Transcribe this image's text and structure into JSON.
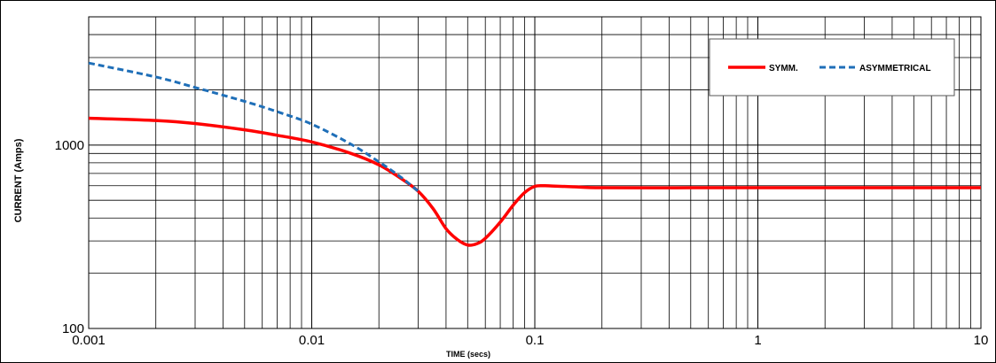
{
  "chart_data": {
    "type": "line",
    "title": "",
    "xlabel": "TIME (secs)",
    "ylabel": "CURRENT (Amps)",
    "xscale": "log",
    "yscale": "log",
    "xlim": [
      0.001,
      10
    ],
    "ylim": [
      100,
      5000
    ],
    "grid": true,
    "legend_position": "top-right",
    "x_tick_labels": [
      "0.001",
      "0.01",
      "0.1",
      "1",
      "10"
    ],
    "x_tick_values": [
      0.001,
      0.01,
      0.1,
      1,
      10
    ],
    "y_tick_labels": [
      "100",
      "1000"
    ],
    "y_tick_values": [
      100,
      1000
    ],
    "series": [
      {
        "name": "SYMM.",
        "color": "#ff0000",
        "style": "solid",
        "x": [
          0.001,
          0.002,
          0.003,
          0.005,
          0.007,
          0.01,
          0.015,
          0.02,
          0.025,
          0.03,
          0.035,
          0.04,
          0.045,
          0.05,
          0.055,
          0.06,
          0.07,
          0.08,
          0.09,
          0.1,
          0.11,
          0.12,
          0.15,
          0.2,
          0.5,
          1,
          2,
          5,
          10
        ],
        "y": [
          1400,
          1360,
          1310,
          1210,
          1130,
          1040,
          900,
          780,
          660,
          560,
          450,
          350,
          305,
          285,
          290,
          310,
          380,
          470,
          550,
          595,
          600,
          598,
          592,
          585,
          585,
          585,
          585,
          585,
          585
        ]
      },
      {
        "name": "ASYMMETRICAL",
        "color": "#1f6fb8",
        "style": "dashed",
        "x": [
          0.001,
          0.002,
          0.003,
          0.005,
          0.007,
          0.01,
          0.015,
          0.02,
          0.025,
          0.03
        ],
        "y": [
          2800,
          2350,
          2060,
          1730,
          1520,
          1300,
          1010,
          810,
          670,
          560
        ]
      }
    ]
  }
}
